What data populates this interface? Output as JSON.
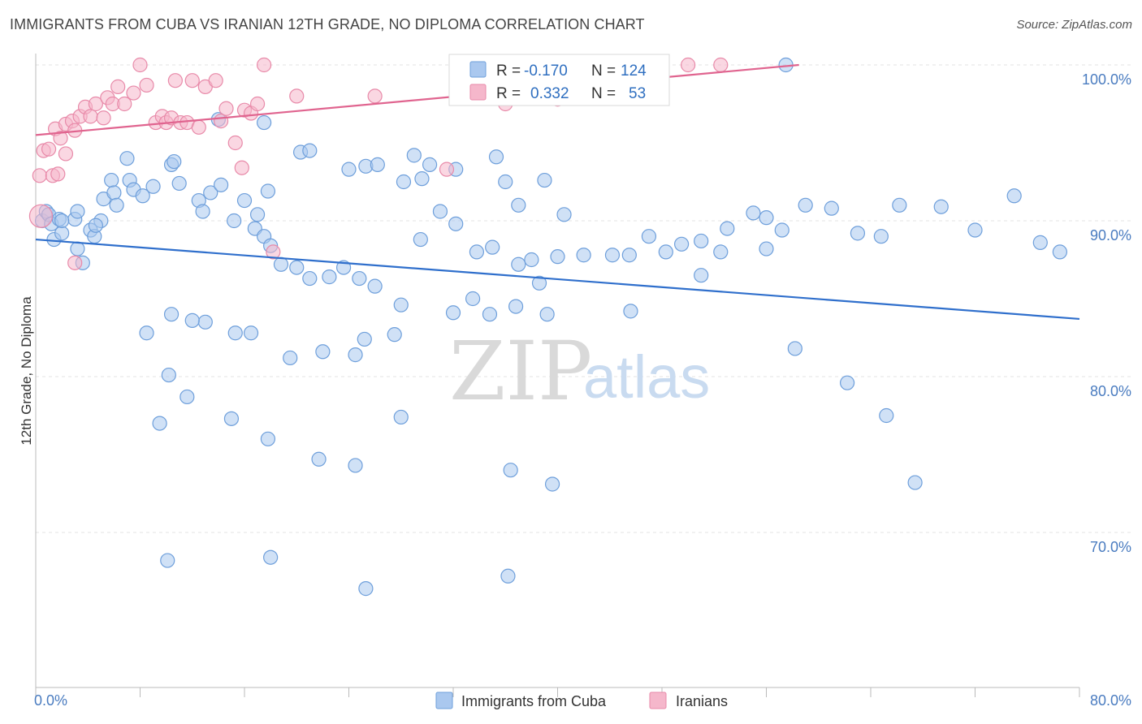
{
  "title": "IMMIGRANTS FROM CUBA VS IRANIAN 12TH GRADE, NO DIPLOMA CORRELATION CHART",
  "source": "Source: ZipAtlas.com",
  "watermark": {
    "zip": "ZIP",
    "atlas": "atlas"
  },
  "colors": {
    "blue_fill": "#aac8ef",
    "blue_stroke": "#6e9fdb",
    "blue_line": "#2f6fcc",
    "pink_fill": "#f5b7cb",
    "pink_stroke": "#e88aa9",
    "pink_line": "#e0648f",
    "grid": "#e3e3e3",
    "axis": "#bbbbbb",
    "tick_label": "#4a7cc0"
  },
  "legend_top": {
    "r_label": "R =",
    "n_label": "N =",
    "rows": [
      {
        "r": "-0.170",
        "n": "124",
        "series": "blue"
      },
      {
        "r": "0.332",
        "n": "53",
        "series": "pink"
      }
    ]
  },
  "chart_data": {
    "type": "scatter",
    "title": "IMMIGRANTS FROM CUBA VS IRANIAN 12TH GRADE, NO DIPLOMA CORRELATION CHART",
    "xlabel": "",
    "ylabel": "12th Grade, No Diploma",
    "xlim": [
      0,
      80
    ],
    "ylim": [
      60,
      101.5
    ],
    "x_tick_labels": [
      "0.0%",
      "80.0%"
    ],
    "y_ticks": [
      100,
      90,
      80,
      70
    ],
    "y_tick_labels": [
      "100.0%",
      "90.0%",
      "80.0%",
      "70.0%"
    ],
    "grid": true,
    "legend_position": "bottom",
    "series": [
      {
        "name": "Immigrants from Cuba",
        "color": "blue",
        "trend": {
          "x": [
            0,
            80
          ],
          "y": [
            88.8,
            83.7
          ]
        },
        "points": [
          [
            0.5,
            90.0
          ],
          [
            0.8,
            90.6
          ],
          [
            1.0,
            90.4
          ],
          [
            1.2,
            89.8
          ],
          [
            1.8,
            90.1
          ],
          [
            1.4,
            88.8
          ],
          [
            2.0,
            89.2
          ],
          [
            3.0,
            90.1
          ],
          [
            3.2,
            88.2
          ],
          [
            3.6,
            87.3
          ],
          [
            4.2,
            89.4
          ],
          [
            4.5,
            89.0
          ],
          [
            5.0,
            90.0
          ],
          [
            5.2,
            91.4
          ],
          [
            5.8,
            92.6
          ],
          [
            6.0,
            91.8
          ],
          [
            7.2,
            92.6
          ],
          [
            7.5,
            92.0
          ],
          [
            8.2,
            91.6
          ],
          [
            9.0,
            92.2
          ],
          [
            10.4,
            93.6
          ],
          [
            11.0,
            92.4
          ],
          [
            12.5,
            91.3
          ],
          [
            12.8,
            90.6
          ],
          [
            13.4,
            91.8
          ],
          [
            14.2,
            92.3
          ],
          [
            15.2,
            90.0
          ],
          [
            16.0,
            91.3
          ],
          [
            16.8,
            89.5
          ],
          [
            17.5,
            89.0
          ],
          [
            18.0,
            88.4
          ],
          [
            18.8,
            87.2
          ],
          [
            20.0,
            87.0
          ],
          [
            21.0,
            86.3
          ],
          [
            22.5,
            86.4
          ],
          [
            23.6,
            87.0
          ],
          [
            24.8,
            86.3
          ],
          [
            26.0,
            85.8
          ],
          [
            28.0,
            84.6
          ],
          [
            29.5,
            88.8
          ],
          [
            31.0,
            90.6
          ],
          [
            32.2,
            89.8
          ],
          [
            33.8,
            88.0
          ],
          [
            35.0,
            88.3
          ],
          [
            37.0,
            87.2
          ],
          [
            38.6,
            86.0
          ],
          [
            40.5,
            90.4
          ],
          [
            42.0,
            87.8
          ],
          [
            44.2,
            87.8
          ],
          [
            45.5,
            87.8
          ],
          [
            47.0,
            89.0
          ],
          [
            48.3,
            88.0
          ],
          [
            49.5,
            88.5
          ],
          [
            51.0,
            88.7
          ],
          [
            53.0,
            89.5
          ],
          [
            55.0,
            90.5
          ],
          [
            56.0,
            90.2
          ],
          [
            57.2,
            89.4
          ],
          [
            59.0,
            91.0
          ],
          [
            61.0,
            90.8
          ],
          [
            63.0,
            89.2
          ],
          [
            64.8,
            89.0
          ],
          [
            66.2,
            91.0
          ],
          [
            69.4,
            90.9
          ],
          [
            72.0,
            89.4
          ],
          [
            75.0,
            91.6
          ],
          [
            77.0,
            88.6
          ],
          [
            78.5,
            88.0
          ],
          [
            7.0,
            94.0
          ],
          [
            10.6,
            93.8
          ],
          [
            14.0,
            96.5
          ],
          [
            17.5,
            96.3
          ],
          [
            20.3,
            94.4
          ],
          [
            21.0,
            94.5
          ],
          [
            24.0,
            93.3
          ],
          [
            25.3,
            93.5
          ],
          [
            26.2,
            93.6
          ],
          [
            29.0,
            94.2
          ],
          [
            32.2,
            93.3
          ],
          [
            35.3,
            94.1
          ],
          [
            36.0,
            92.5
          ],
          [
            37.0,
            91.0
          ],
          [
            39.0,
            92.6
          ],
          [
            38.0,
            87.5
          ],
          [
            29.6,
            92.7
          ],
          [
            28.2,
            92.5
          ],
          [
            30.2,
            93.6
          ],
          [
            17.8,
            91.9
          ],
          [
            17.0,
            90.4
          ],
          [
            6.2,
            91.0
          ],
          [
            3.2,
            90.6
          ],
          [
            2.0,
            90.0
          ],
          [
            4.6,
            89.7
          ],
          [
            57.5,
            100.0
          ],
          [
            58.2,
            81.8
          ],
          [
            62.2,
            79.6
          ],
          [
            65.2,
            77.5
          ],
          [
            67.4,
            73.2
          ],
          [
            56.0,
            88.2
          ],
          [
            51.0,
            86.5
          ],
          [
            52.5,
            88.0
          ],
          [
            40.0,
            87.7
          ],
          [
            33.5,
            85.0
          ],
          [
            36.8,
            84.5
          ],
          [
            39.2,
            84.0
          ],
          [
            45.6,
            84.2
          ],
          [
            34.8,
            84.0
          ],
          [
            32.0,
            84.1
          ],
          [
            27.5,
            82.7
          ],
          [
            25.2,
            82.4
          ],
          [
            24.5,
            81.4
          ],
          [
            22.0,
            81.6
          ],
          [
            19.5,
            81.2
          ],
          [
            16.5,
            82.8
          ],
          [
            15.3,
            82.8
          ],
          [
            13.0,
            83.5
          ],
          [
            12.0,
            83.6
          ],
          [
            10.4,
            84.0
          ],
          [
            8.5,
            82.8
          ],
          [
            10.2,
            80.1
          ],
          [
            11.6,
            78.7
          ],
          [
            9.5,
            77.0
          ],
          [
            15.0,
            77.3
          ],
          [
            17.8,
            76.0
          ],
          [
            21.7,
            74.7
          ],
          [
            24.5,
            74.3
          ],
          [
            28.0,
            77.4
          ],
          [
            36.4,
            74.0
          ],
          [
            39.6,
            73.1
          ],
          [
            10.1,
            68.2
          ],
          [
            18.0,
            68.4
          ],
          [
            25.3,
            66.4
          ],
          [
            36.2,
            67.2
          ]
        ]
      },
      {
        "name": "Iranians",
        "color": "pink",
        "trend": {
          "x": [
            0,
            58.5
          ],
          "y": [
            95.5,
            100.0
          ]
        },
        "points": [
          [
            0.3,
            92.9
          ],
          [
            0.6,
            94.5
          ],
          [
            1.0,
            94.6
          ],
          [
            1.3,
            92.9
          ],
          [
            1.5,
            95.9
          ],
          [
            1.9,
            95.3
          ],
          [
            2.3,
            96.2
          ],
          [
            2.8,
            96.4
          ],
          [
            3.0,
            95.8
          ],
          [
            3.4,
            96.7
          ],
          [
            3.8,
            97.3
          ],
          [
            4.2,
            96.7
          ],
          [
            4.6,
            97.5
          ],
          [
            5.2,
            96.6
          ],
          [
            5.5,
            97.9
          ],
          [
            5.9,
            97.5
          ],
          [
            6.3,
            98.6
          ],
          [
            6.8,
            97.5
          ],
          [
            7.5,
            98.2
          ],
          [
            8.0,
            100.0
          ],
          [
            8.5,
            98.7
          ],
          [
            9.2,
            96.3
          ],
          [
            9.7,
            96.7
          ],
          [
            10.0,
            96.3
          ],
          [
            10.4,
            96.6
          ],
          [
            10.7,
            99.0
          ],
          [
            11.1,
            96.3
          ],
          [
            11.6,
            96.3
          ],
          [
            12.0,
            99.0
          ],
          [
            12.5,
            96.0
          ],
          [
            13.0,
            98.6
          ],
          [
            13.8,
            99.0
          ],
          [
            14.2,
            96.4
          ],
          [
            14.6,
            97.2
          ],
          [
            15.3,
            95.0
          ],
          [
            15.8,
            93.4
          ],
          [
            16.0,
            97.1
          ],
          [
            16.5,
            96.9
          ],
          [
            17.0,
            97.5
          ],
          [
            17.5,
            100.0
          ],
          [
            18.2,
            88.0
          ],
          [
            20.0,
            98.0
          ],
          [
            26.0,
            98.0
          ],
          [
            31.5,
            93.3
          ],
          [
            34.8,
            100.0
          ],
          [
            36.0,
            97.5
          ],
          [
            40.0,
            97.8
          ],
          [
            50.0,
            100.0
          ],
          [
            52.5,
            100.0
          ],
          [
            3.0,
            87.3
          ],
          [
            2.3,
            94.3
          ],
          [
            0.4,
            90.3
          ],
          [
            1.7,
            93.0
          ]
        ]
      }
    ]
  }
}
